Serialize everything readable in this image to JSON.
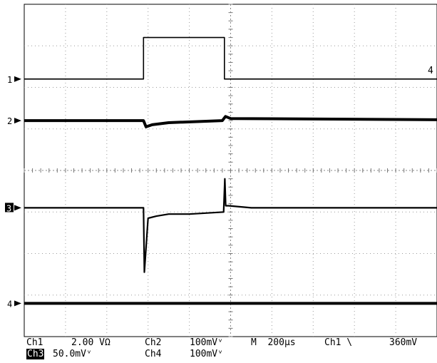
{
  "chart_data": {
    "type": "line",
    "title": "",
    "xlabel": "",
    "ylabel": "",
    "grid": true,
    "time_per_div": "200µs",
    "x_range_us": [
      0,
      2000
    ],
    "y_range_div": [
      -4,
      4
    ],
    "channel_markers": [
      {
        "label": "1",
        "offset_div": 2.2
      },
      {
        "label": "2",
        "offset_div": 1.2
      },
      {
        "label": "3",
        "offset_div": -0.9,
        "inverted": true
      },
      {
        "label": "4",
        "offset_div": -3.2
      }
    ],
    "trigger_marker": "4",
    "series": [
      {
        "channel": "1",
        "x_us": [
          0,
          578,
          578,
          970,
          970,
          2000
        ],
        "y_div": [
          2.2,
          2.2,
          3.2,
          3.2,
          2.2,
          2.2
        ]
      },
      {
        "channel": "2",
        "x_us": [
          0,
          578,
          590,
          620,
          700,
          960,
          975,
          1000,
          2000
        ],
        "y_div": [
          1.2,
          1.2,
          1.05,
          1.1,
          1.15,
          1.2,
          1.3,
          1.25,
          1.22
        ]
      },
      {
        "channel": "3",
        "x_us": [
          0,
          578,
          582,
          600,
          640,
          700,
          800,
          966,
          972,
          976,
          990,
          1100,
          2000
        ],
        "y_div": [
          -0.9,
          -0.9,
          -2.45,
          -1.15,
          -1.1,
          -1.05,
          -1.05,
          -1.0,
          -0.2,
          -0.85,
          -0.85,
          -0.9,
          -0.9
        ]
      },
      {
        "channel": "4",
        "x_us": [
          0,
          2000
        ],
        "y_div": [
          -3.2,
          -3.2
        ]
      }
    ]
  },
  "readout": {
    "line1": {
      "ch1_name": "Ch1",
      "ch1_scale": "2.00 VΩ",
      "ch2_name": "Ch2",
      "ch2_scale": "100mVᵛ",
      "timebase": "M  200µs",
      "trigger_src": "Ch1 \\",
      "trigger_level": "360mV"
    },
    "line2": {
      "ch3_name": "Ch3",
      "ch3_scale": "50.0mVᵛ",
      "ch4_name": "Ch4",
      "ch4_scale": "100mVᵛ"
    }
  }
}
